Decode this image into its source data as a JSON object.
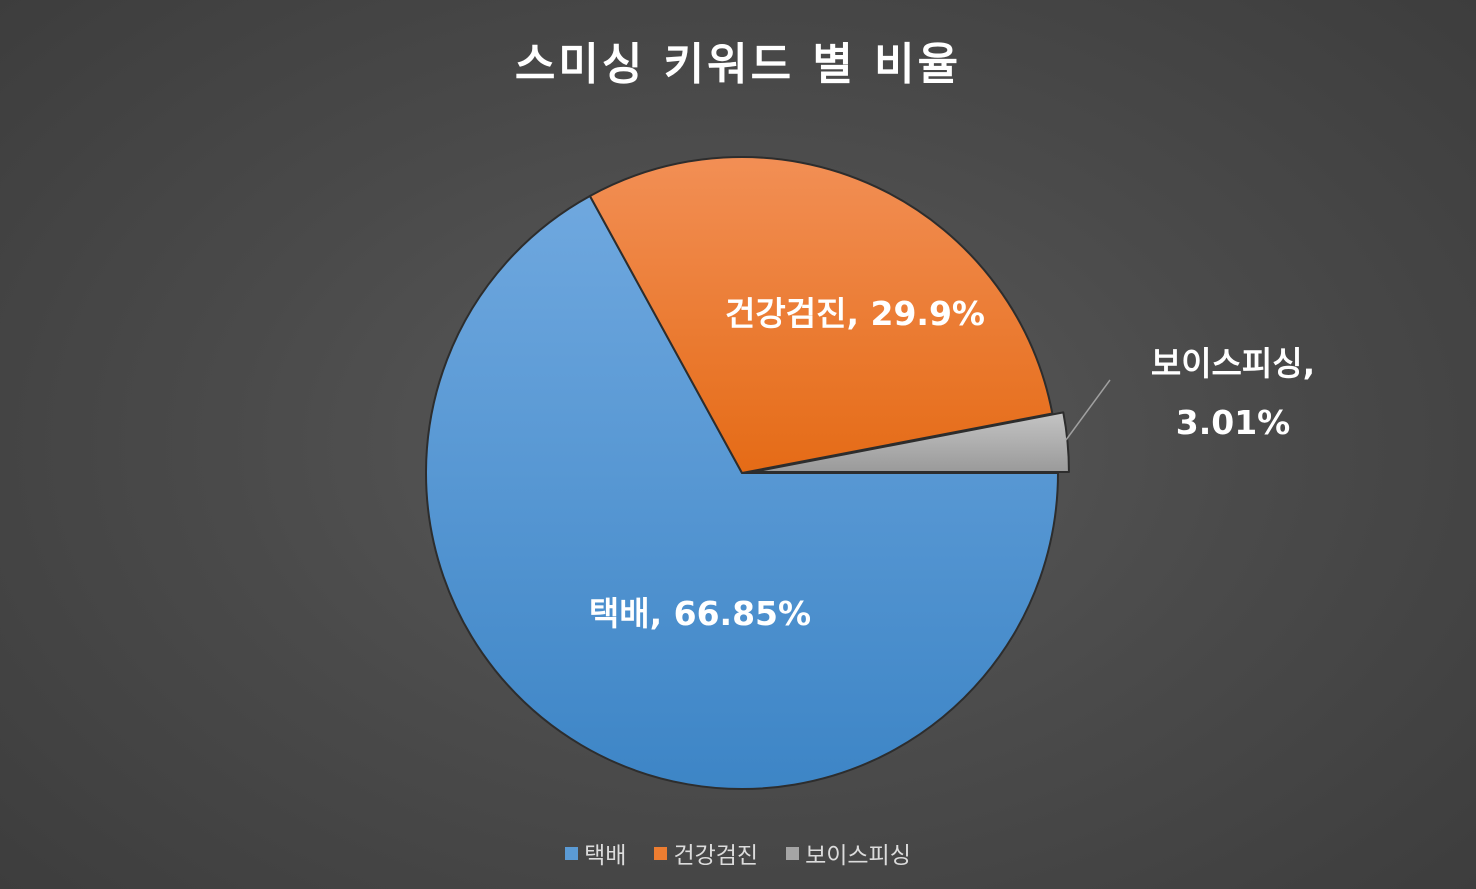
{
  "chart_data": {
    "type": "pie",
    "title": "스미싱 키워드 별 비율",
    "slices": [
      {
        "name": "택배",
        "value": 66.85,
        "label": "택배, 66.85%",
        "color": "#4a8fd4",
        "color_light": "#6fa8df",
        "exploded": false
      },
      {
        "name": "건강검진",
        "value": 29.9,
        "label": "건강검진, 29.9%",
        "color": "#ec7624",
        "color_light": "#f28f55",
        "exploded": false
      },
      {
        "name": "보이스피싱",
        "value": 3.01,
        "label_line1": "보이스피싱,",
        "label_line2": "3.01%",
        "color": "#a5a5a5",
        "color_light": "#c4c4c4",
        "exploded": true
      }
    ],
    "legend": {
      "position": "bottom",
      "entries": [
        "택배",
        "건강검진",
        "보이스피싱"
      ]
    }
  }
}
